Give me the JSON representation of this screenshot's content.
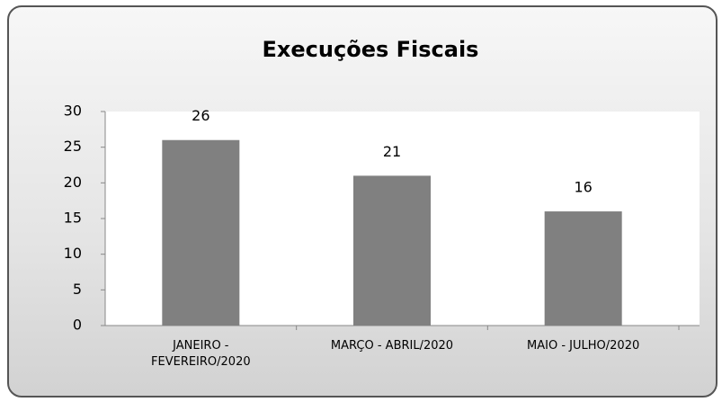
{
  "chart_data": {
    "type": "bar",
    "title": "Execuções Fiscais",
    "categories": [
      "JANEIRO - FEVEREIRO/2020",
      "MARÇO - ABRIL/2020",
      "MAIO - JULHO/2020"
    ],
    "values": [
      26,
      21,
      16
    ],
    "color": "#808080",
    "ylim": [
      0,
      30
    ],
    "yticks": [
      0,
      5,
      10,
      15,
      20,
      25,
      30
    ],
    "grid": false
  }
}
